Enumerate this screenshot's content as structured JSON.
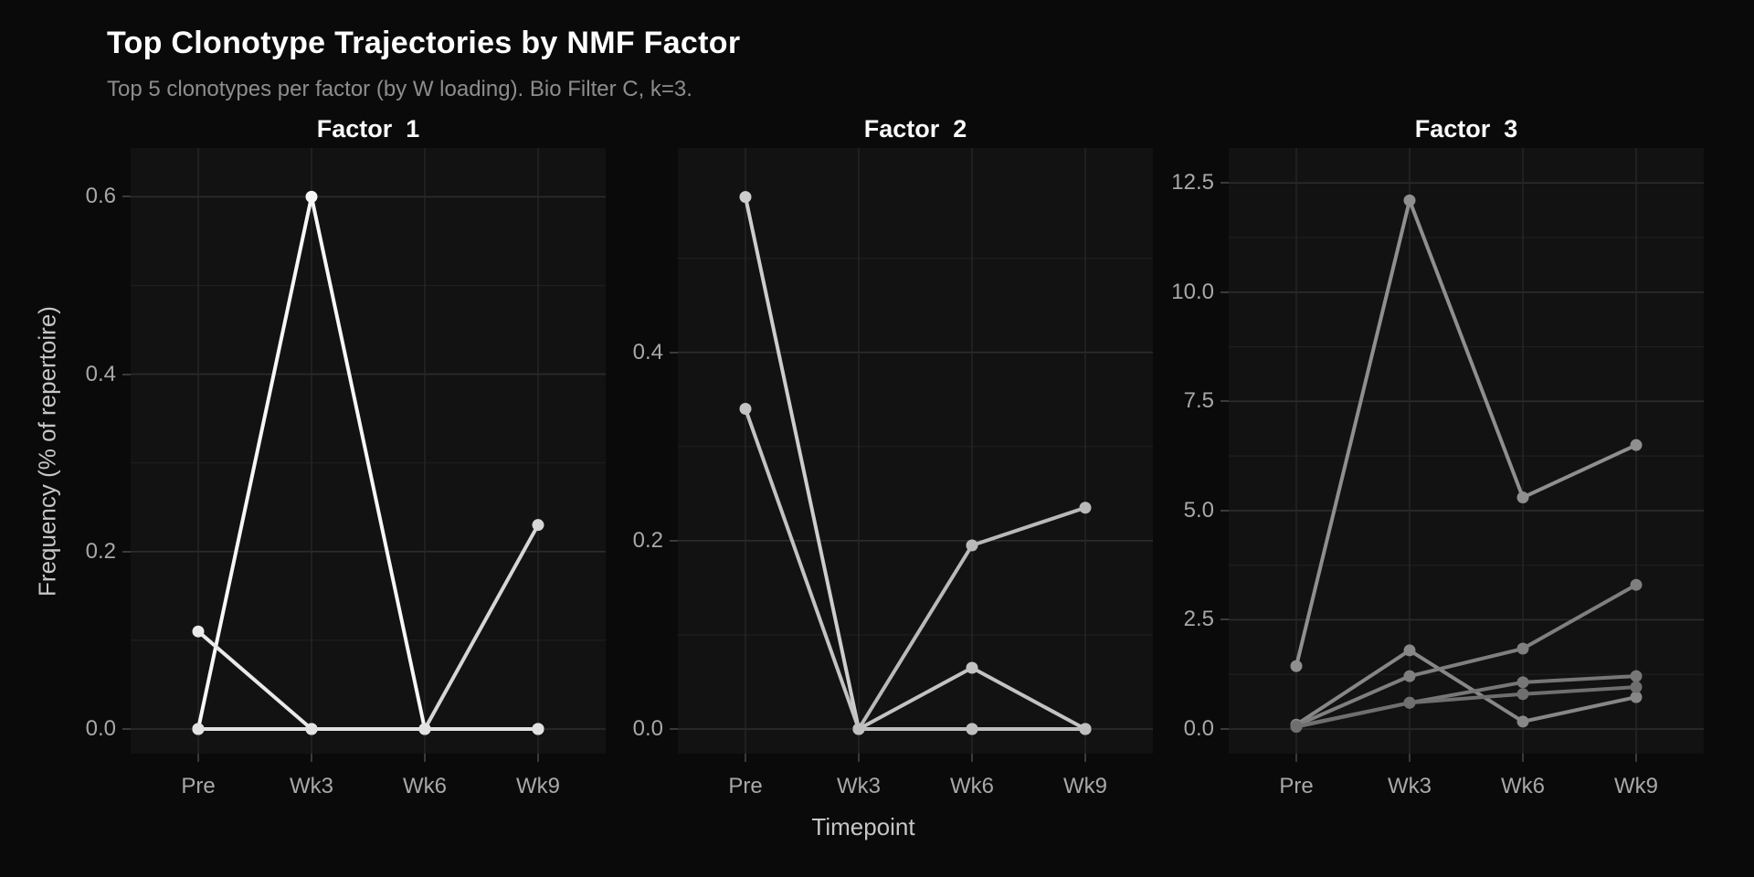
{
  "title": "Top Clonotype Trajectories by NMF Factor",
  "subtitle": "Top 5 clonotypes per factor (by W loading). Bio Filter C, k=3.",
  "chart_data": {
    "type": "line",
    "faceted": true,
    "legend_position": "none",
    "categories": [
      "Pre",
      "Wk3",
      "Wk6",
      "Wk9"
    ],
    "xlabel": "Timepoint",
    "ylabel": "Frequency (% of repertoire)",
    "grid": true,
    "colors": {
      "figure_background": "#0a0a0a",
      "panel_background": "#121212",
      "grid_major": "#2c2c2c",
      "grid_minor": "#1f1f1f",
      "tick_label": "#a8a8a8",
      "axis_title": "#c6c6c6",
      "strip_text": "#fafafa",
      "title_text": "#ffffff",
      "subtitle_text": "#8d8d8d"
    },
    "facets": [
      {
        "title": "Factor  1",
        "ylim": [
          0,
          0.655
        ],
        "yticks": [
          0.0,
          0.2,
          0.4,
          0.6
        ],
        "ytick_labels": [
          "0.0",
          "0.2",
          "0.4",
          "0.6"
        ],
        "yticks_minor": [
          0.1,
          0.3,
          0.5
        ],
        "series": [
          {
            "color": "#f7f7f7",
            "values": [
              0,
              0.6,
              0,
              0
            ]
          },
          {
            "color": "#e9e9e9",
            "values": [
              0.11,
              0,
              0,
              0
            ]
          },
          {
            "color": "#d6d6d6",
            "values": [
              0,
              0,
              0,
              0.23
            ]
          },
          {
            "color": "#efefef",
            "values": [
              0,
              0,
              0,
              0
            ]
          },
          {
            "color": "#e2e2e2",
            "values": [
              0,
              0,
              0,
              0
            ]
          }
        ]
      },
      {
        "title": "Factor  2",
        "ylim": [
          0,
          0.617
        ],
        "yticks": [
          0.0,
          0.2,
          0.4
        ],
        "ytick_labels": [
          "0.0",
          "0.2",
          "0.4"
        ],
        "yticks_minor": [
          0.1,
          0.3,
          0.5
        ],
        "series": [
          {
            "color": "#cdcdcd",
            "values": [
              0.565,
              0,
              0,
              0
            ]
          },
          {
            "color": "#c3c3c3",
            "values": [
              0.34,
              0,
              0.065,
              0
            ]
          },
          {
            "color": "#b9b9b9",
            "values": [
              null,
              0,
              0.195,
              0.235
            ]
          },
          {
            "color": "#c8c8c8",
            "values": [
              null,
              0,
              0,
              0
            ]
          },
          {
            "color": "#bfbfbf",
            "values": [
              null,
              0,
              0,
              0
            ]
          }
        ]
      },
      {
        "title": "Factor  3",
        "ylim": [
          0,
          13.3
        ],
        "yticks": [
          0.0,
          2.5,
          5.0,
          7.5,
          10.0,
          12.5
        ],
        "ytick_labels": [
          "0.0",
          "2.5",
          "5.0",
          "7.5",
          "10.0",
          "12.5"
        ],
        "yticks_minor": [
          1.25,
          3.75,
          6.25,
          8.75,
          11.25
        ],
        "series": [
          {
            "color": "#8f8f8f",
            "values": [
              1.44,
              12.1,
              5.3,
              6.5
            ]
          },
          {
            "color": "#878787",
            "values": [
              0.1,
              1.8,
              0.17,
              0.73
            ]
          },
          {
            "color": "#7f7f7f",
            "values": [
              0.08,
              1.21,
              1.84,
              3.3
            ]
          },
          {
            "color": "#777777",
            "values": [
              0.06,
              0.6,
              1.07,
              1.21
            ]
          },
          {
            "color": "#6f6f6f",
            "values": [
              0.05,
              0.6,
              0.8,
              0.96
            ]
          }
        ]
      }
    ]
  }
}
